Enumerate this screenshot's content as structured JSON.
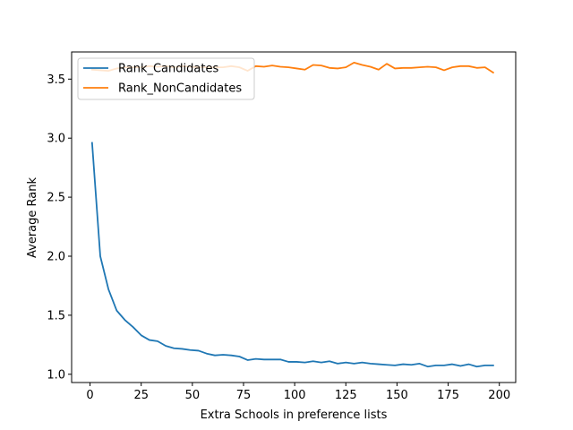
{
  "chart_data": {
    "type": "line",
    "title": "",
    "xlabel": "Extra Schools in preference lists",
    "ylabel": "Average Rank",
    "xlim": [
      -9,
      208
    ],
    "ylim": [
      0.93,
      3.73
    ],
    "xticks": [
      0,
      25,
      50,
      75,
      100,
      125,
      150,
      175,
      200
    ],
    "yticks": [
      1.0,
      1.5,
      2.0,
      2.5,
      3.0,
      3.5
    ],
    "xtick_labels": [
      "0",
      "25",
      "50",
      "75",
      "100",
      "125",
      "150",
      "175",
      "200"
    ],
    "ytick_labels": [
      "1.0",
      "1.5",
      "2.0",
      "2.5",
      "3.0",
      "3.5"
    ],
    "grid": false,
    "legend": "top-left",
    "series": [
      {
        "name": "Rank_Candidates",
        "color": "#1f77b4",
        "x": [
          1,
          5,
          9,
          13,
          17,
          21,
          25,
          29,
          33,
          37,
          41,
          45,
          49,
          53,
          57,
          61,
          65,
          69,
          73,
          77,
          81,
          85,
          89,
          93,
          97,
          101,
          105,
          109,
          113,
          117,
          121,
          125,
          129,
          133,
          137,
          141,
          145,
          149,
          153,
          157,
          161,
          165,
          169,
          173,
          177,
          181,
          185,
          189,
          193,
          197
        ],
        "y": [
          2.96,
          2.0,
          1.72,
          1.54,
          1.46,
          1.4,
          1.33,
          1.29,
          1.28,
          1.24,
          1.22,
          1.215,
          1.205,
          1.2,
          1.175,
          1.16,
          1.165,
          1.16,
          1.15,
          1.12,
          1.13,
          1.125,
          1.125,
          1.125,
          1.105,
          1.105,
          1.1,
          1.11,
          1.1,
          1.11,
          1.09,
          1.1,
          1.09,
          1.1,
          1.09,
          1.085,
          1.08,
          1.075,
          1.085,
          1.08,
          1.09,
          1.065,
          1.075,
          1.075,
          1.085,
          1.07,
          1.085,
          1.065,
          1.075,
          1.075
        ]
      },
      {
        "name": "Rank_NonCandidates",
        "color": "#ff7f0e",
        "x": [
          1,
          5,
          9,
          13,
          17,
          21,
          25,
          29,
          33,
          37,
          41,
          45,
          49,
          53,
          57,
          61,
          65,
          69,
          73,
          77,
          81,
          85,
          89,
          93,
          97,
          101,
          105,
          109,
          113,
          117,
          121,
          125,
          129,
          133,
          137,
          141,
          145,
          149,
          153,
          157,
          161,
          165,
          169,
          173,
          177,
          181,
          185,
          189,
          193,
          197
        ],
        "y": [
          3.58,
          3.575,
          3.57,
          3.59,
          3.6,
          3.6,
          3.6,
          3.61,
          3.605,
          3.61,
          3.6,
          3.61,
          3.605,
          3.6,
          3.6,
          3.6,
          3.6,
          3.61,
          3.6,
          3.57,
          3.61,
          3.605,
          3.615,
          3.605,
          3.6,
          3.59,
          3.58,
          3.62,
          3.615,
          3.595,
          3.59,
          3.6,
          3.64,
          3.62,
          3.605,
          3.58,
          3.63,
          3.59,
          3.595,
          3.595,
          3.6,
          3.605,
          3.6,
          3.575,
          3.6,
          3.61,
          3.61,
          3.595,
          3.6,
          3.555
        ]
      }
    ]
  }
}
